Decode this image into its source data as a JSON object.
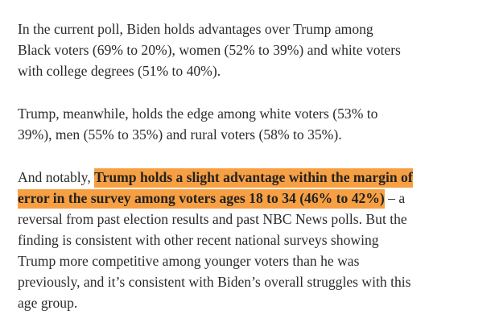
{
  "paragraphs": [
    {
      "lines": [
        [
          {
            "text": "In the current poll, Biden holds advantages over Trump among"
          }
        ],
        [
          {
            "text": "Black voters (69% to 20%), women (52% to 39%) and white voters"
          }
        ],
        [
          {
            "text": "with college degrees (51% to 40%)."
          }
        ]
      ]
    },
    {
      "lines": [
        [
          {
            "text": "Trump, meanwhile, holds the edge among white voters (53% to"
          }
        ],
        [
          {
            "text": "39%), men (55% to 35%) and rural voters (58% to 35%)."
          }
        ]
      ]
    },
    {
      "lines": [
        [
          {
            "text": "And notably, "
          },
          {
            "text": "Trump holds a slight advantage within the margin of",
            "highlight": true
          }
        ],
        [
          {
            "text": "error in the survey among voters ages 18 to 34 (46% to 42%)",
            "highlight": true
          },
          {
            "text": " – a"
          }
        ],
        [
          {
            "text": "reversal from past election results and past NBC News polls. But the"
          }
        ],
        [
          {
            "text": "finding is consistent with other recent national surveys showing"
          }
        ],
        [
          {
            "text": "Trump more competitive among younger voters than he was"
          }
        ],
        [
          {
            "text": "previously, and it’s consistent with Biden’s overall struggles with this"
          }
        ],
        [
          {
            "text": "age group."
          }
        ]
      ]
    }
  ]
}
